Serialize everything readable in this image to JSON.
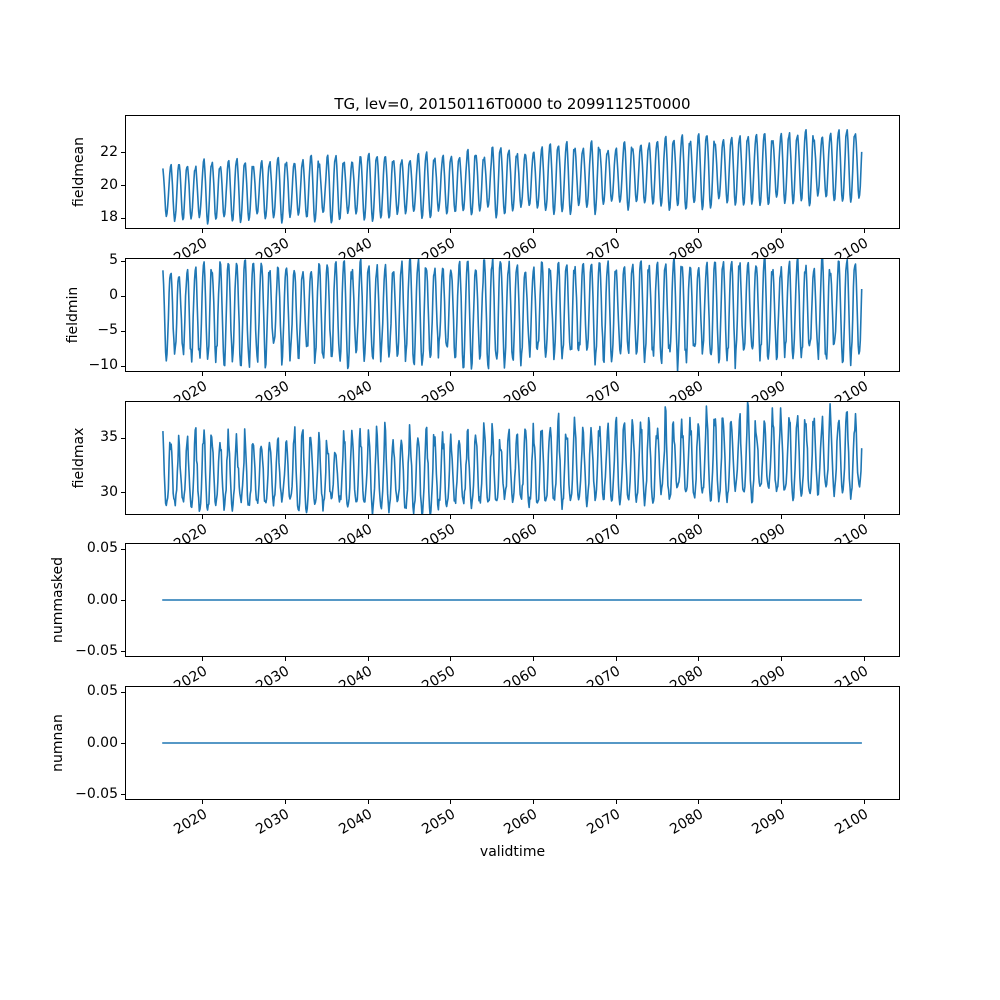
{
  "chart_data": {
    "type": "line",
    "title": "TG, lev=0, 20150116T0000 to 20991125T0000",
    "xlabel": "validtime",
    "line_color": "#1f77b4",
    "axis_color": "#000000",
    "xlim": [
      2010.65,
      2104.4
    ],
    "x_start": 2015.042,
    "x_end": 2099.9,
    "x_ticks": [
      {
        "v": 2020,
        "label": "2020"
      },
      {
        "v": 2030,
        "label": "2030"
      },
      {
        "v": 2040,
        "label": "2040"
      },
      {
        "v": 2050,
        "label": "2050"
      },
      {
        "v": 2060,
        "label": "2060"
      },
      {
        "v": 2070,
        "label": "2070"
      },
      {
        "v": 2080,
        "label": "2080"
      },
      {
        "v": 2090,
        "label": "2090"
      },
      {
        "v": 2100,
        "label": "2100"
      }
    ],
    "subplots": [
      {
        "id": "fieldmean",
        "ylabel": "fieldmean",
        "ylim": [
          17.3,
          24.3
        ],
        "ylabel_offset": -47,
        "yticks": [
          {
            "v": 22,
            "label": "22"
          },
          {
            "v": 20,
            "label": "20"
          },
          {
            "v": 18,
            "label": "18"
          }
        ],
        "approx_range": [
          17.5,
          23.8
        ],
        "description": "annual cycle, baseline rising from ~19.5 to ~21.2",
        "series": {
          "kind": "seasonal",
          "seed": 7,
          "base": [
            [
              2015,
              19.5
            ],
            [
              2045,
              19.9
            ],
            [
              2075,
              20.7
            ],
            [
              2100,
              21.2
            ]
          ],
          "seasonal": [
            1.65,
            1.75,
            1.2,
            0.45,
            -0.5,
            -1.35,
            -1.75,
            -1.6,
            -1.05,
            -0.2,
            0.7,
            1.4
          ],
          "amp_jitter": 0.18,
          "amp_growth": [
            1.0,
            1.18
          ],
          "noise": 0.08,
          "noise_shape": 0,
          "noise_extra": 0
        }
      },
      {
        "id": "fieldmin",
        "ylabel": "fieldmin",
        "ylim": [
          -10.9,
          5.4
        ],
        "ylabel_offset": -53,
        "yticks": [
          {
            "v": 5,
            "label": "5"
          },
          {
            "v": 0,
            "label": "0"
          },
          {
            "v": -5,
            "label": "−5"
          },
          {
            "v": -10,
            "label": "−10"
          }
        ],
        "approx_range": [
          -10.2,
          4.7
        ],
        "description": "annual cycle, peaks ~+3 to +4.5, winter lows -6 to -10, no trend",
        "series": {
          "kind": "seasonal",
          "seed": 13,
          "base": [
            [
              2015,
              -2.5
            ],
            [
              2100,
              -2.1
            ]
          ],
          "seasonal": [
            6.2,
            6.6,
            4.6,
            1.6,
            -1.8,
            -4.6,
            -6.4,
            -6.0,
            -4.2,
            -1.0,
            2.6,
            5.2
          ],
          "amp_jitter": 0.15,
          "amp_growth": [
            1.0,
            1.05
          ],
          "noise": 0.55,
          "noise_shape": -1,
          "noise_extra": 1.6
        }
      },
      {
        "id": "fieldmax",
        "ylabel": "fieldmax",
        "ylim": [
          27.9,
          38.4
        ],
        "ylabel_offset": -47,
        "yticks": [
          {
            "v": 35,
            "label": "35"
          },
          {
            "v": 30,
            "label": "30"
          }
        ],
        "approx_range": [
          28.2,
          38.0
        ],
        "description": "spiky summer peaks 34-36 early rising to 36-38 late, troughs ~28-31",
        "series": {
          "kind": "seasonal",
          "seed": 42,
          "base": [
            [
              2015,
              31.4
            ],
            [
              2050,
              31.4
            ],
            [
              2070,
              32.3
            ],
            [
              2100,
              33.1
            ]
          ],
          "seasonal": [
            3.6,
            3.3,
            2.1,
            0.6,
            -1.2,
            -2.2,
            -2.7,
            -2.5,
            -1.9,
            -0.9,
            0.9,
            2.6
          ],
          "amp_jitter": 0.2,
          "amp_growth": [
            1.0,
            1.12
          ],
          "noise": 0.45,
          "noise_shape": 1,
          "noise_extra": 1.8
        }
      },
      {
        "id": "nummasked",
        "ylabel": "nummasked",
        "ylim": [
          -0.0555,
          0.0555
        ],
        "ylabel_offset": -68,
        "yticks": [
          {
            "v": 0.05,
            "label": "0.05"
          },
          {
            "v": 0,
            "label": "0.00"
          },
          {
            "v": -0.05,
            "label": "−0.05"
          }
        ],
        "approx_range": [
          0,
          0
        ],
        "description": "constant zero",
        "series": {
          "kind": "constant",
          "value": 0
        }
      },
      {
        "id": "numnan",
        "ylabel": "numnan",
        "ylim": [
          -0.0555,
          0.0555
        ],
        "ylabel_offset": -68,
        "yticks": [
          {
            "v": 0.05,
            "label": "0.05"
          },
          {
            "v": 0,
            "label": "0.00"
          },
          {
            "v": -0.05,
            "label": "−0.05"
          }
        ],
        "approx_range": [
          0,
          0
        ],
        "description": "constant zero",
        "series": {
          "kind": "constant",
          "value": 0
        }
      }
    ]
  }
}
